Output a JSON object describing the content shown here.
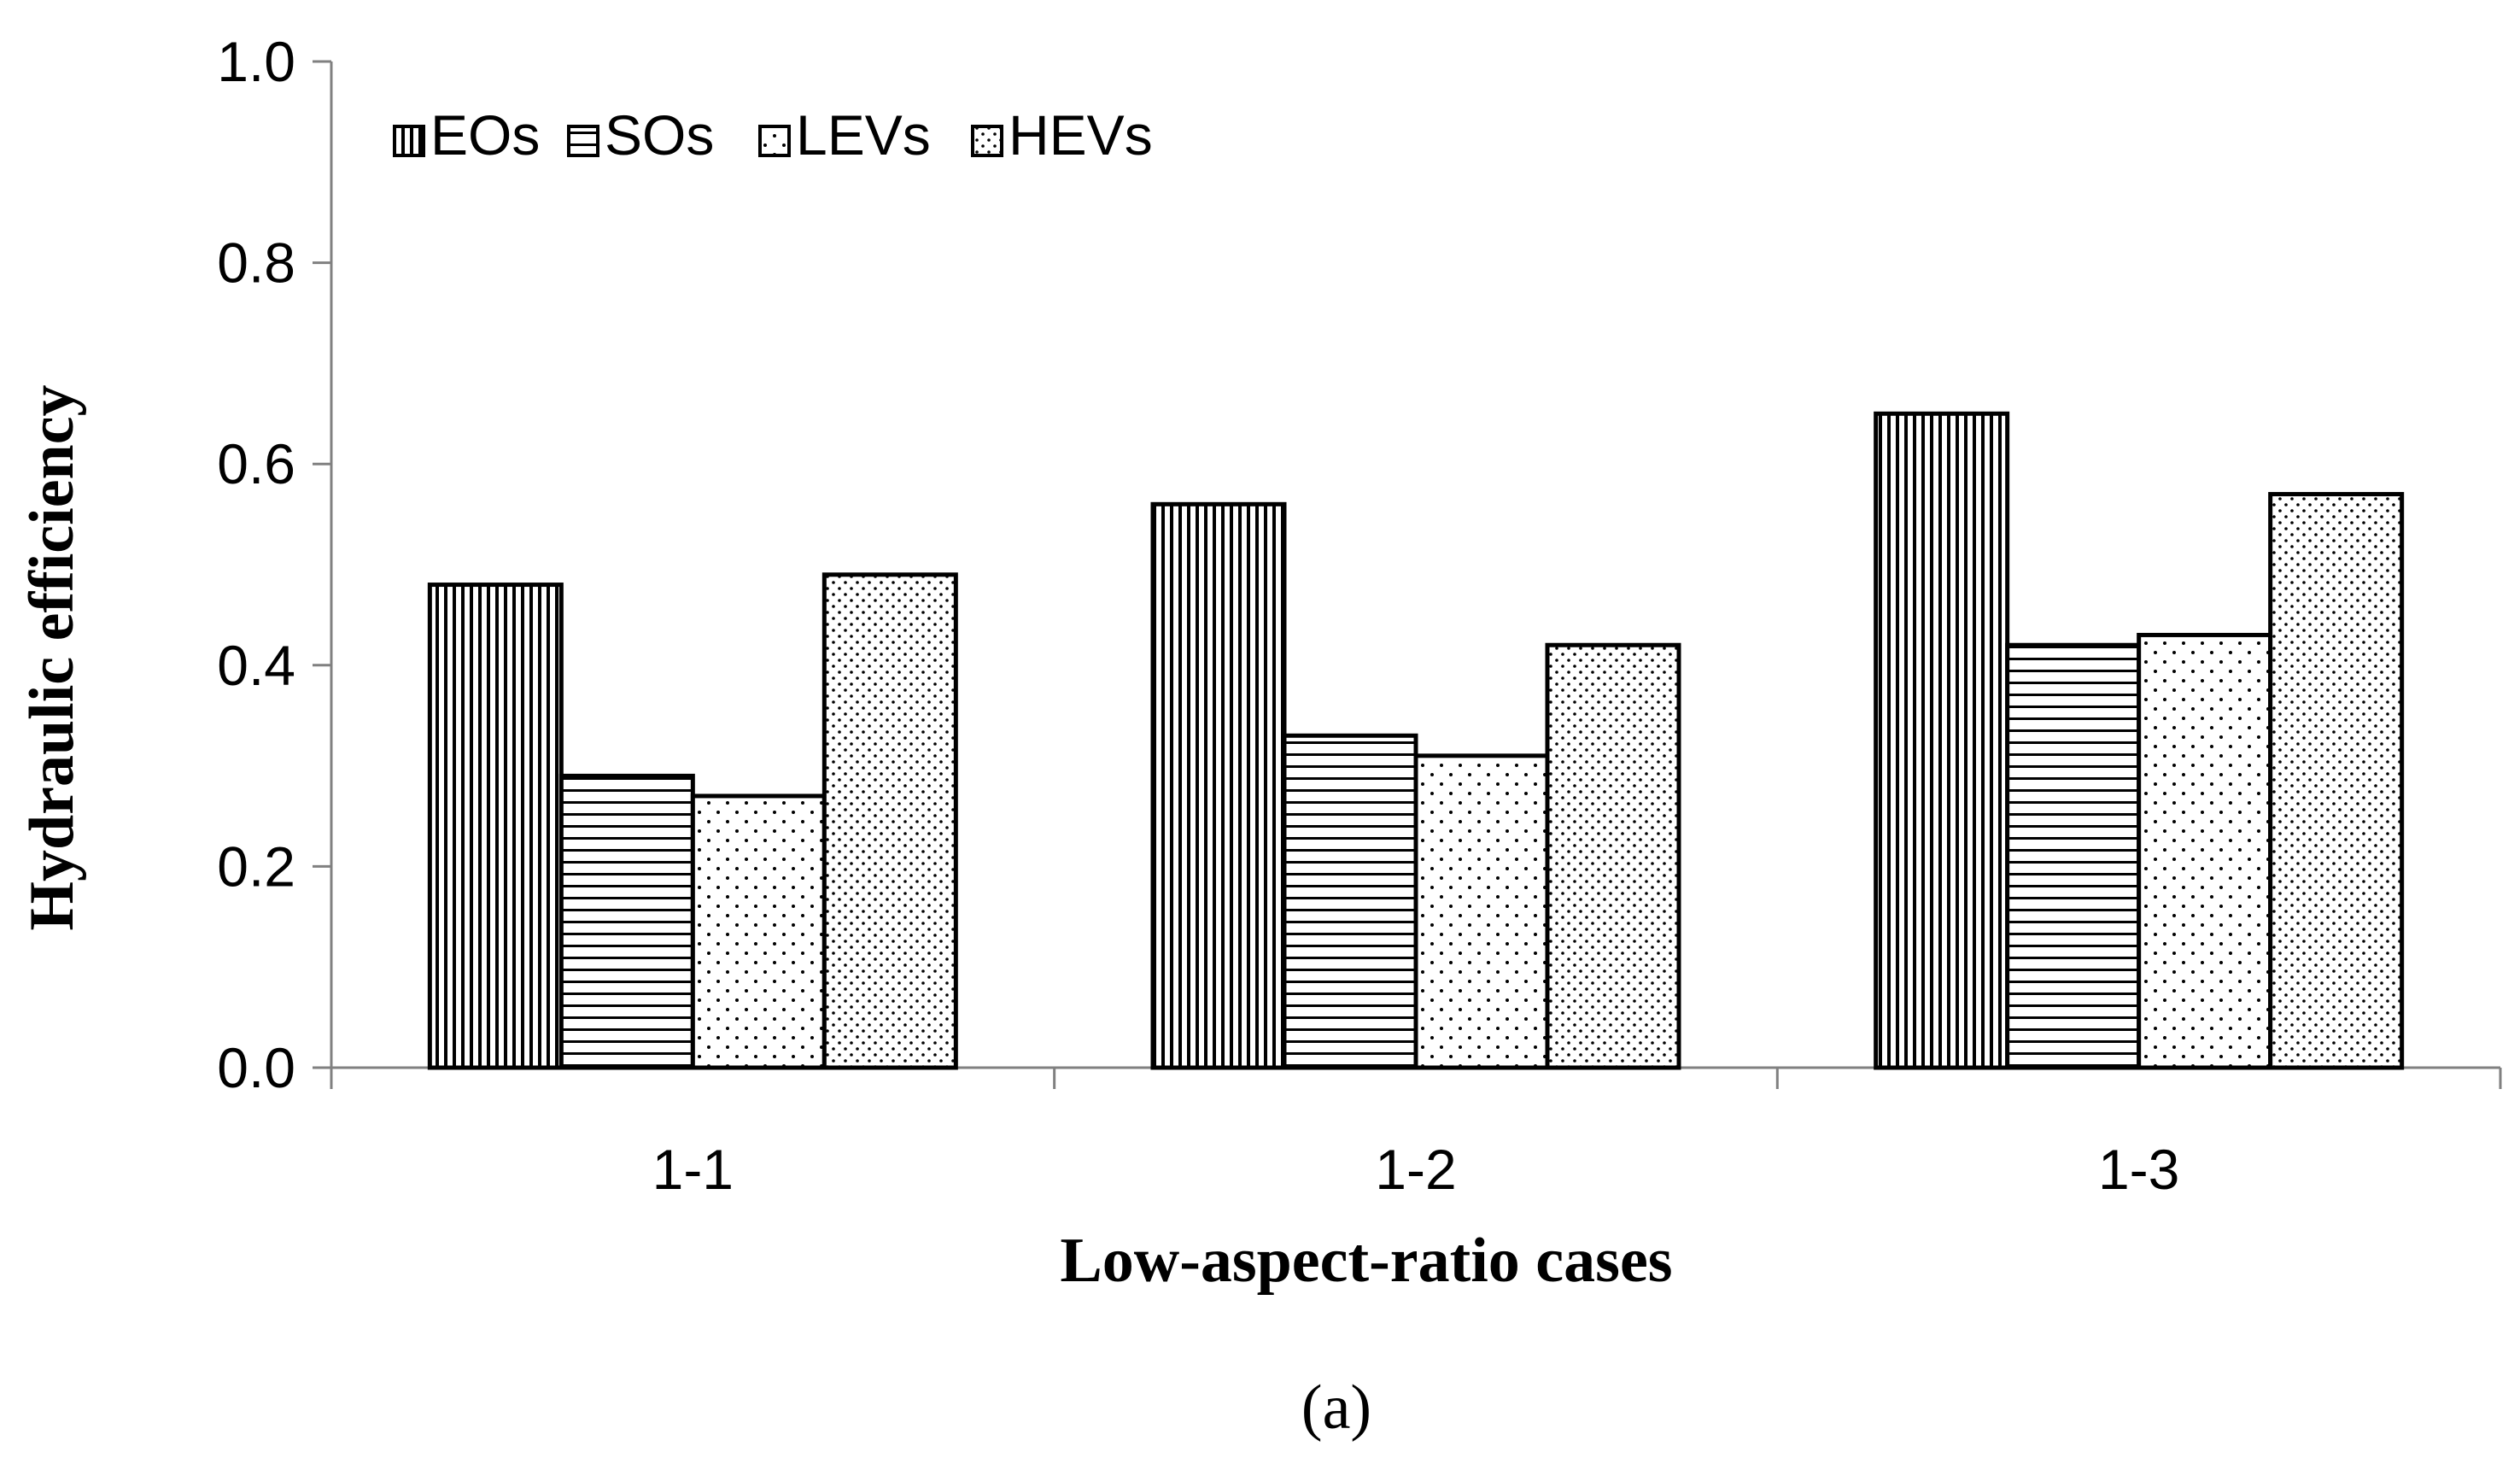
{
  "chart_data": {
    "type": "bar",
    "title": "",
    "xlabel": "Low-aspect-ratio cases",
    "ylabel": "Hydraulic efficiency",
    "caption": "(a)",
    "categories": [
      "1-1",
      "1-2",
      "1-3"
    ],
    "ylim": [
      0,
      1.0
    ],
    "yticks": [
      "0.0",
      "0.2",
      "0.4",
      "0.6",
      "0.8",
      "1.0"
    ],
    "legend_position": "top-left",
    "grid": false,
    "series": [
      {
        "name": "EOs",
        "pattern": "vertical-lines",
        "values": [
          0.48,
          0.56,
          0.65
        ]
      },
      {
        "name": "SOs",
        "pattern": "horizontal-lines",
        "values": [
          0.29,
          0.33,
          0.42
        ]
      },
      {
        "name": "LEVs",
        "pattern": "sparse-dots",
        "values": [
          0.27,
          0.31,
          0.43
        ]
      },
      {
        "name": "HEVs",
        "pattern": "dense-dots",
        "values": [
          0.49,
          0.42,
          0.57
        ]
      }
    ]
  }
}
